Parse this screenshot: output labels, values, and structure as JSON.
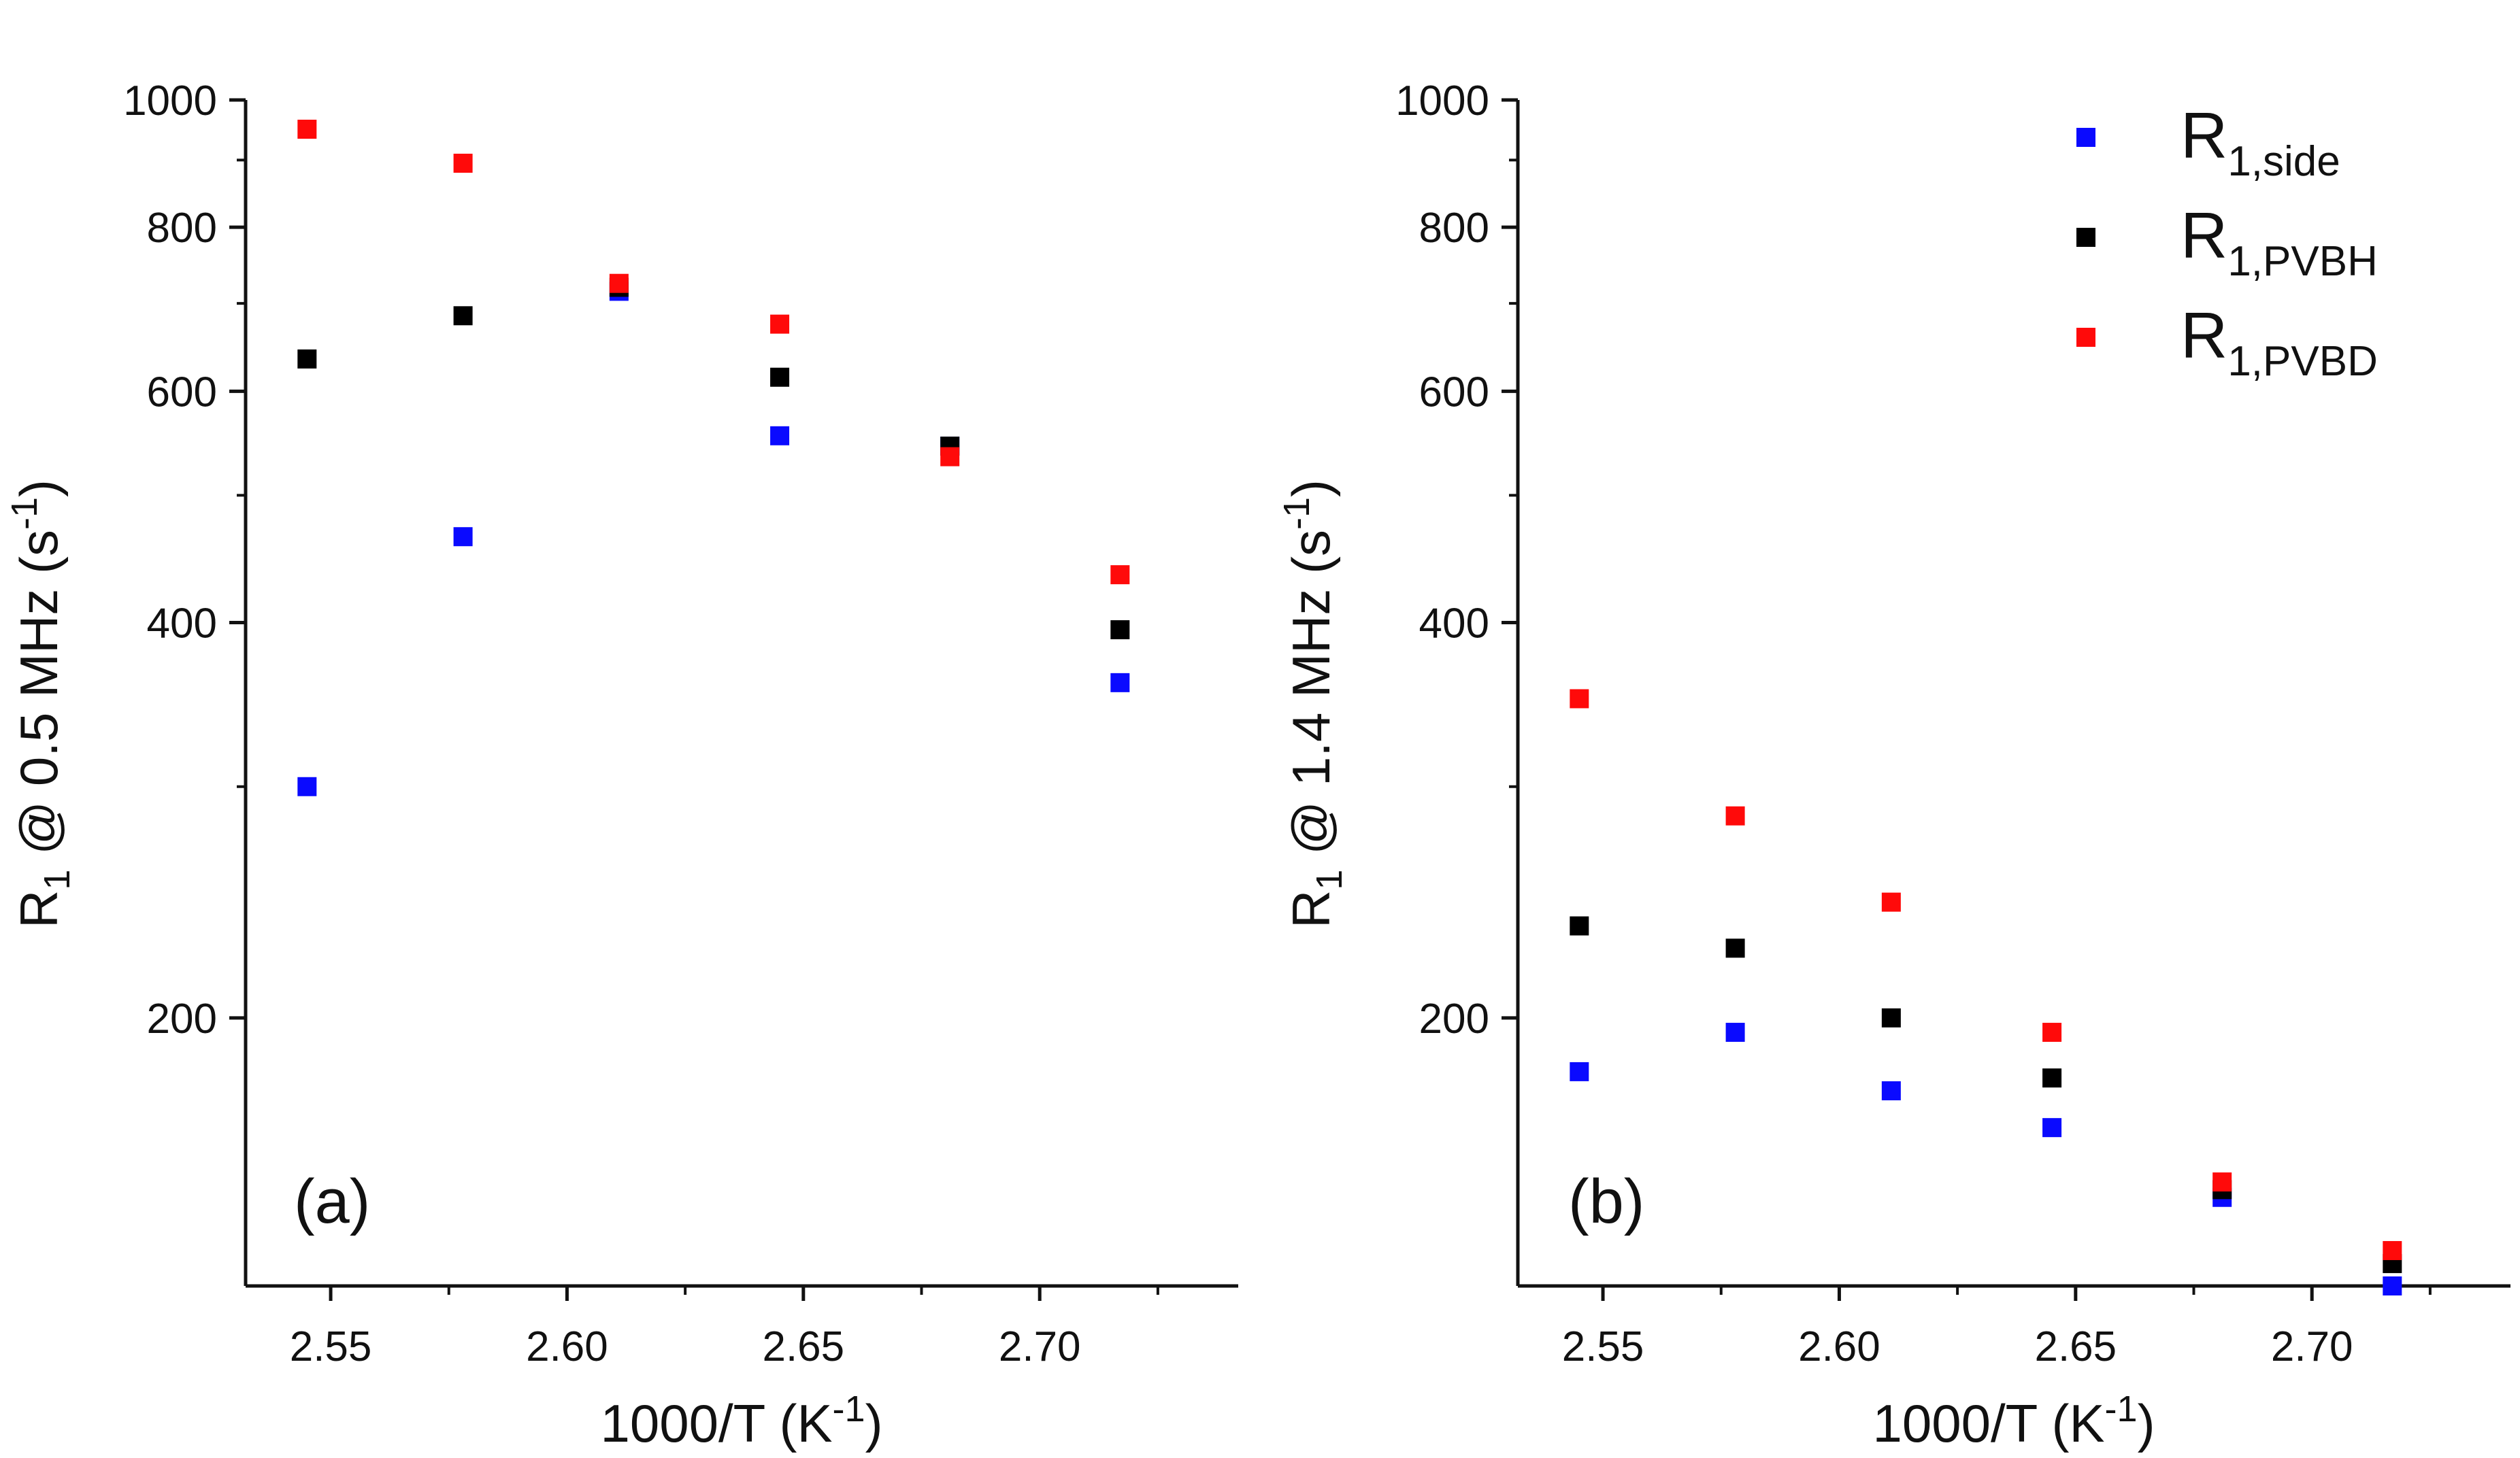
{
  "chart_data": [
    {
      "type": "scatter",
      "panel_label": "(a)",
      "title": "",
      "xlabel": {
        "main": "1000/T (K",
        "sup": "-1",
        "close": ")"
      },
      "ylabel": {
        "main": "R",
        "sub": "1",
        "rest": " @ 0.5 MHz (s",
        "sup": "-1",
        "close": ")"
      },
      "xlim": [
        2.532,
        2.742
      ],
      "ylim": [
        125,
        1000
      ],
      "yscale": "log",
      "xticks": [
        2.55,
        2.6,
        2.65,
        2.7
      ],
      "xtick_labels": [
        "2.55",
        "2.60",
        "2.65",
        "2.70"
      ],
      "yticks": [
        200,
        400,
        600,
        800,
        1000
      ],
      "ytick_labels": [
        "200",
        "400",
        "600",
        "800",
        "1000"
      ],
      "x": [
        2.545,
        2.578,
        2.611,
        2.645,
        2.681,
        2.717
      ],
      "series": [
        {
          "name": "R1,side",
          "color": "#0a0aff",
          "values": [
            300,
            465,
            715,
            555,
            545,
            360
          ]
        },
        {
          "name": "R1,PVBH",
          "color": "#000000",
          "values": [
            635,
            685,
            720,
            615,
            545,
            395
          ]
        },
        {
          "name": "R1,PVBD",
          "color": "#ff0a0a",
          "values": [
            950,
            895,
            725,
            675,
            535,
            435
          ]
        }
      ]
    },
    {
      "type": "scatter",
      "panel_label": "(b)",
      "title": "",
      "xlabel": {
        "main": "1000/T (K",
        "sup": "-1",
        "close": ")"
      },
      "ylabel": {
        "main": "R",
        "sub": "1",
        "rest": " @ 1.4 MHz (s",
        "sup": "-1",
        "close": ")"
      },
      "xlim": [
        2.532,
        2.742
      ],
      "ylim": [
        125,
        1000
      ],
      "yscale": "log",
      "xticks": [
        2.55,
        2.6,
        2.65,
        2.7
      ],
      "xtick_labels": [
        "2.55",
        "2.60",
        "2.65",
        "2.70"
      ],
      "yticks": [
        200,
        400,
        600,
        800,
        1000
      ],
      "ytick_labels": [
        "200",
        "400",
        "600",
        "800",
        "1000"
      ],
      "x": [
        2.545,
        2.578,
        2.611,
        2.645,
        2.681,
        2.717
      ],
      "series": [
        {
          "name": "R1,side",
          "color": "#0a0aff",
          "values": [
            182,
            195,
            176,
            165,
            146,
            125
          ]
        },
        {
          "name": "R1,PVBH",
          "color": "#000000",
          "values": [
            235,
            226,
            200,
            180,
            148,
            130
          ]
        },
        {
          "name": "R1,PVBD",
          "color": "#ff0a0a",
          "values": [
            350,
            285,
            245,
            195,
            150,
            133
          ]
        }
      ],
      "legend": {
        "placement": "top-right",
        "entries": [
          {
            "main": "R",
            "sub": "1,side",
            "color": "#0a0aff"
          },
          {
            "main": "R",
            "sub": "1,PVBH",
            "color": "#000000"
          },
          {
            "main": "R",
            "sub": "1,PVBD",
            "color": "#ff0a0a"
          }
        ]
      }
    }
  ]
}
